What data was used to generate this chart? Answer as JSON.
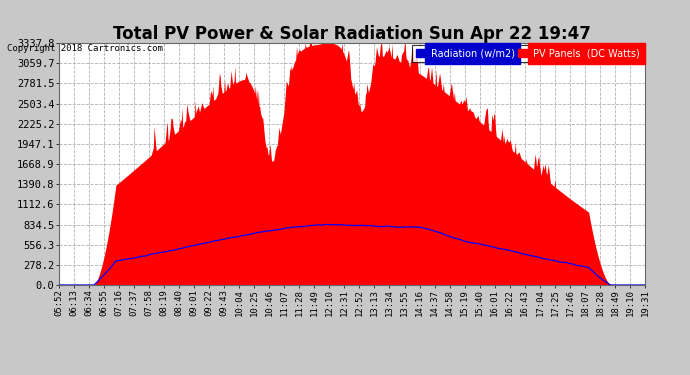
{
  "title": "Total PV Power & Solar Radiation Sun Apr 22 19:47",
  "copyright": "Copyright 2018 Cartronics.com",
  "legend_radiation": "Radiation (w/m2)",
  "legend_pv": "PV Panels  (DC Watts)",
  "yticks": [
    0.0,
    278.2,
    556.3,
    834.5,
    1112.6,
    1390.8,
    1668.9,
    1947.1,
    2225.2,
    2503.4,
    2781.5,
    3059.7,
    3337.8
  ],
  "ymax": 3337.8,
  "background_color": "#c8c8c8",
  "plot_bg_color": "#ffffff",
  "pv_fill_color": "#ff0000",
  "radiation_line_color": "#0000ff",
  "title_fontsize": 12,
  "xlabel_fontsize": 6.5,
  "ylabel_fontsize": 7.5,
  "xtick_labels": [
    "05:52",
    "06:13",
    "06:34",
    "06:55",
    "07:16",
    "07:37",
    "07:58",
    "08:19",
    "08:40",
    "09:01",
    "09:22",
    "09:43",
    "10:04",
    "10:25",
    "10:46",
    "11:07",
    "11:28",
    "11:49",
    "12:10",
    "12:31",
    "12:52",
    "13:13",
    "13:34",
    "13:55",
    "14:16",
    "14:37",
    "14:58",
    "15:19",
    "15:40",
    "16:01",
    "16:22",
    "16:43",
    "17:04",
    "17:25",
    "17:46",
    "18:07",
    "18:28",
    "18:49",
    "19:10",
    "19:31"
  ]
}
